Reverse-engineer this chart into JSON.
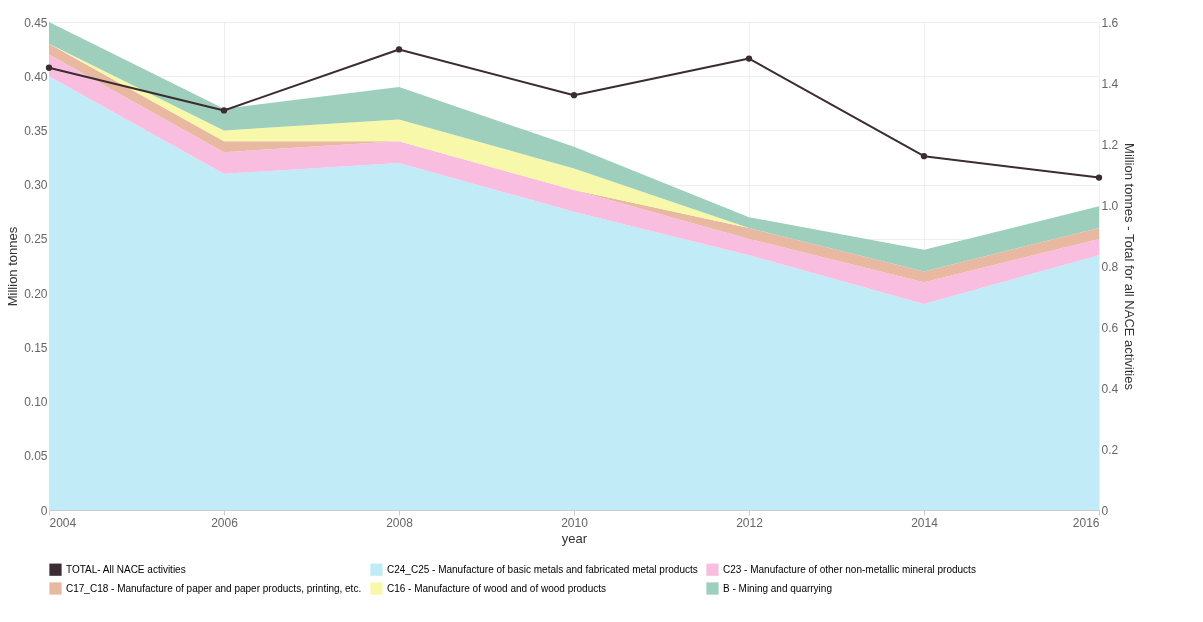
{
  "chart_data": {
    "type": "area",
    "stacked": true,
    "xlabel": "year",
    "ylabel": "Million tonnes",
    "y2label": "Million tonnes - Total for all NACE activities",
    "x": [
      2004,
      2006,
      2008,
      2010,
      2012,
      2014,
      2016
    ],
    "xlim": [
      2004,
      2016
    ],
    "xticks": [
      2004,
      2006,
      2008,
      2010,
      2012,
      2014,
      2016
    ],
    "ylim": [
      0,
      0.45
    ],
    "yticks": [
      0,
      0.05,
      {
        "value": 0.1,
        "label": "0.10"
      },
      0.15,
      {
        "value": 0.2,
        "label": "0.20"
      },
      0.25,
      {
        "value": 0.3,
        "label": "0.30"
      },
      0.35,
      {
        "value": 0.4,
        "label": "0.40"
      },
      0.45
    ],
    "y2lim": [
      0,
      1.6
    ],
    "y2ticks": [
      0,
      0.2,
      0.4,
      0.6,
      0.8,
      {
        "value": 1,
        "label": "1.0"
      },
      1.2,
      1.4,
      1.6
    ],
    "series": [
      {
        "name": "TOTAL- All NACE activities",
        "type": "line",
        "axis": "y2",
        "color": "#3b2b33",
        "marker": "circle",
        "values": [
          1.45,
          1.31,
          1.51,
          1.36,
          1.48,
          1.16,
          1.09
        ]
      },
      {
        "name": "C24_C25 - Manufacture of basic metals and fabricated metal products",
        "color": "#c1ebf7",
        "values": [
          0.4,
          0.31,
          0.32,
          0.275,
          0.235,
          0.19,
          0.235
        ]
      },
      {
        "name": "C23 - Manufacture of other non-metallic mineral products",
        "color": "#f9bde0",
        "values": [
          0.02,
          0.02,
          0.02,
          0.02,
          0.015,
          0.02,
          0.015
        ]
      },
      {
        "name": "C17_C18 - Manufacture of paper and paper products, printing, etc.",
        "color": "#e8b9a0",
        "values": [
          0.01,
          0.01,
          0,
          0,
          0.01,
          0.01,
          0.01
        ]
      },
      {
        "name": "C16 - Manufacture of wood and of wood products",
        "color": "#f7f8a9",
        "values": [
          0,
          0.01,
          0.02,
          0.02,
          0,
          0,
          0
        ]
      },
      {
        "name": "B - Mining and quarrying",
        "color": "#9dcfbc",
        "values": [
          0.02,
          0.02,
          0.03,
          0.02,
          0.01,
          0.02,
          0.02
        ]
      }
    ],
    "grid": true,
    "legend": "bottom",
    "line_style": "solid"
  }
}
